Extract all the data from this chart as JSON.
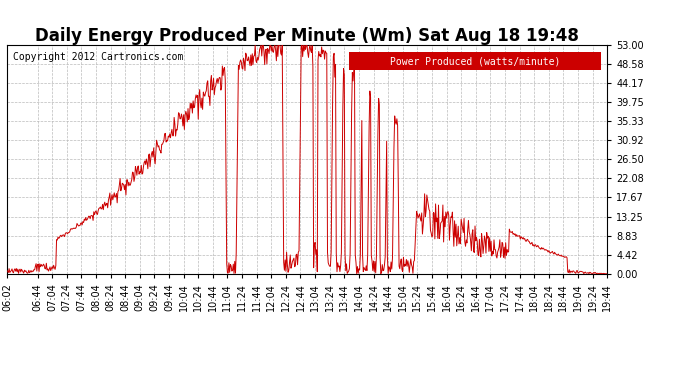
{
  "title": "Daily Energy Produced Per Minute (Wm) Sat Aug 18 19:48",
  "copyright": "Copyright 2012 Cartronics.com",
  "legend_label": "Power Produced (watts/minute)",
  "legend_bg": "#cc0000",
  "legend_text_color": "#ffffff",
  "line_color": "#cc0000",
  "bg_color": "#ffffff",
  "grid_color": "#bbbbbb",
  "ymin": 0.0,
  "ymax": 53.0,
  "yticks": [
    0.0,
    4.42,
    8.83,
    13.25,
    17.67,
    22.08,
    26.5,
    30.92,
    35.33,
    39.75,
    44.17,
    48.58,
    53.0
  ],
  "xtick_labels": [
    "06:02",
    "06:44",
    "07:04",
    "07:24",
    "07:44",
    "08:04",
    "08:24",
    "08:44",
    "09:04",
    "09:24",
    "09:44",
    "10:04",
    "10:24",
    "10:44",
    "11:04",
    "11:24",
    "11:44",
    "12:04",
    "12:24",
    "12:44",
    "13:04",
    "13:24",
    "13:44",
    "14:04",
    "14:24",
    "14:44",
    "15:04",
    "15:24",
    "15:44",
    "16:04",
    "16:24",
    "16:44",
    "17:04",
    "17:24",
    "17:44",
    "18:04",
    "18:24",
    "18:44",
    "19:04",
    "19:24",
    "19:44"
  ],
  "title_fontsize": 12,
  "copyright_fontsize": 7,
  "tick_fontsize": 7,
  "legend_fontsize": 7
}
